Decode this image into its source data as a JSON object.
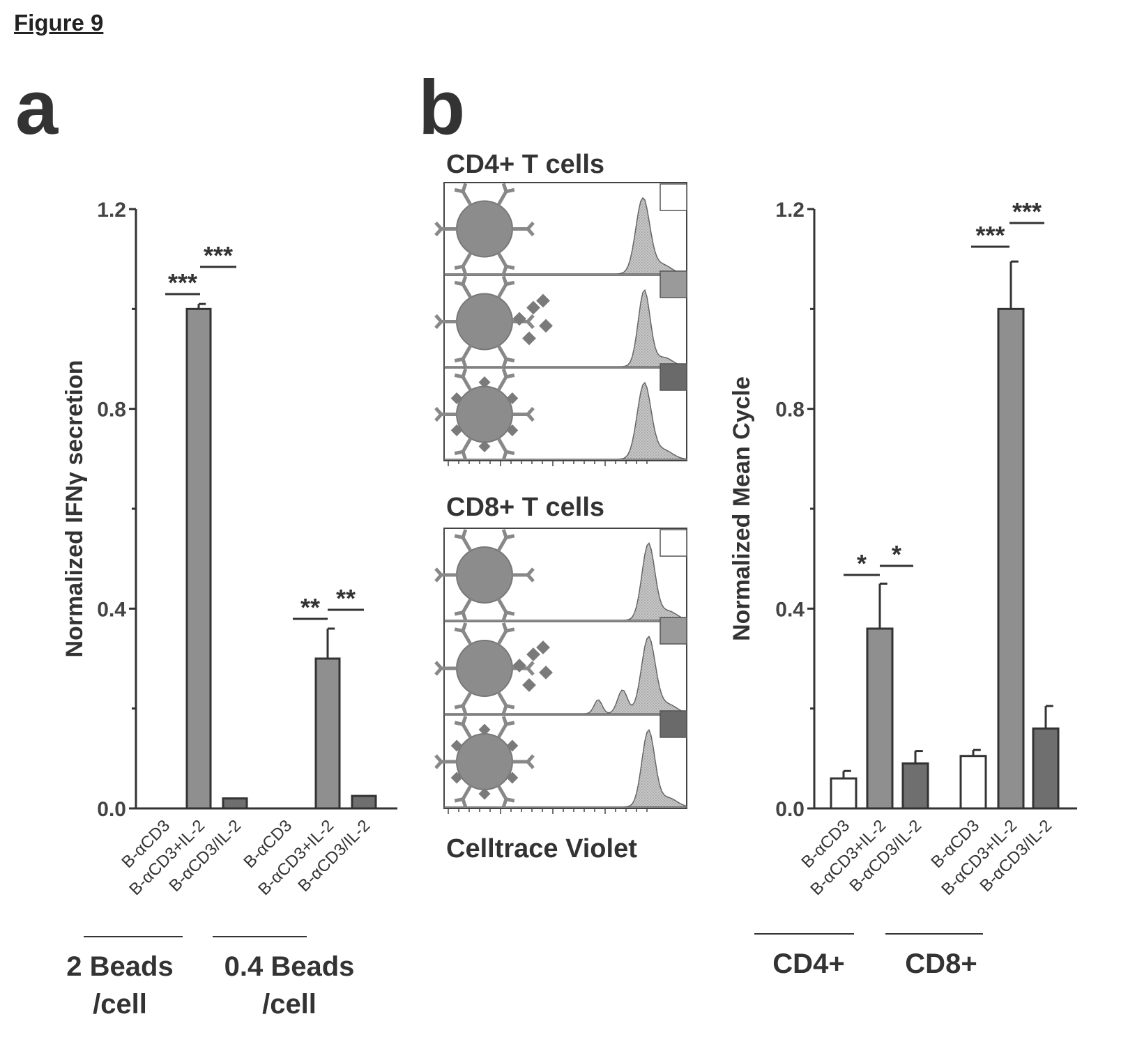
{
  "figure_title": "Figure 9",
  "panel_a_letter": "a",
  "panel_b_letter": "b",
  "chart_data": [
    {
      "type": "bar",
      "panel": "a",
      "ylabel": "Normalized IFNγ secretion",
      "ylim": [
        0,
        1.2
      ],
      "yticks": [
        "0.0",
        "0.4",
        "0.8",
        "1.2"
      ],
      "categories": [
        "B-αCD3",
        "B-αCD3+IL-2",
        "B-αCD3/IL-2",
        "B-αCD3",
        "B-αCD3+IL-2",
        "B-αCD3/IL-2"
      ],
      "values": [
        0.0,
        1.0,
        0.02,
        0.0,
        0.3,
        0.025
      ],
      "errors": [
        0.0,
        0.01,
        0.0,
        0.0,
        0.06,
        0.0
      ],
      "bar_colors": [
        "#ffffff",
        "#8f8f8f",
        "#6f6f6f",
        "#ffffff",
        "#8f8f8f",
        "#6f6f6f"
      ],
      "groups": [
        {
          "label_line1": "2 Beads",
          "label_line2": "/cell"
        },
        {
          "label_line1": "0.4 Beads",
          "label_line2": "/cell"
        }
      ],
      "significance": [
        "***",
        "***",
        "**",
        "**"
      ]
    },
    {
      "type": "bar",
      "panel": "b",
      "ylabel": "Normalized Mean Cycle",
      "ylim": [
        0,
        1.2
      ],
      "yticks": [
        "0.0",
        "0.4",
        "0.8",
        "1.2"
      ],
      "categories": [
        "B-αCD3",
        "B-αCD3+IL-2",
        "B-αCD3/IL-2",
        "B-αCD3",
        "B-αCD3+IL-2",
        "B-αCD3/IL-2"
      ],
      "values": [
        0.06,
        0.36,
        0.09,
        0.105,
        1.0,
        0.16
      ],
      "errors": [
        0.015,
        0.09,
        0.025,
        0.012,
        0.095,
        0.045
      ],
      "bar_colors": [
        "#ffffff",
        "#8f8f8f",
        "#6f6f6f",
        "#ffffff",
        "#8f8f8f",
        "#6f6f6f"
      ],
      "groups": [
        {
          "label_line1": "CD4+",
          "label_line2": ""
        },
        {
          "label_line1": "CD8+",
          "label_line2": ""
        }
      ],
      "significance": [
        "*",
        "*",
        "***",
        "***"
      ]
    }
  ],
  "histograms": {
    "cd4_title": "CD4+ T cells",
    "cd8_title": "CD8+ T cells",
    "xlabel": "Celltrace Violet"
  }
}
